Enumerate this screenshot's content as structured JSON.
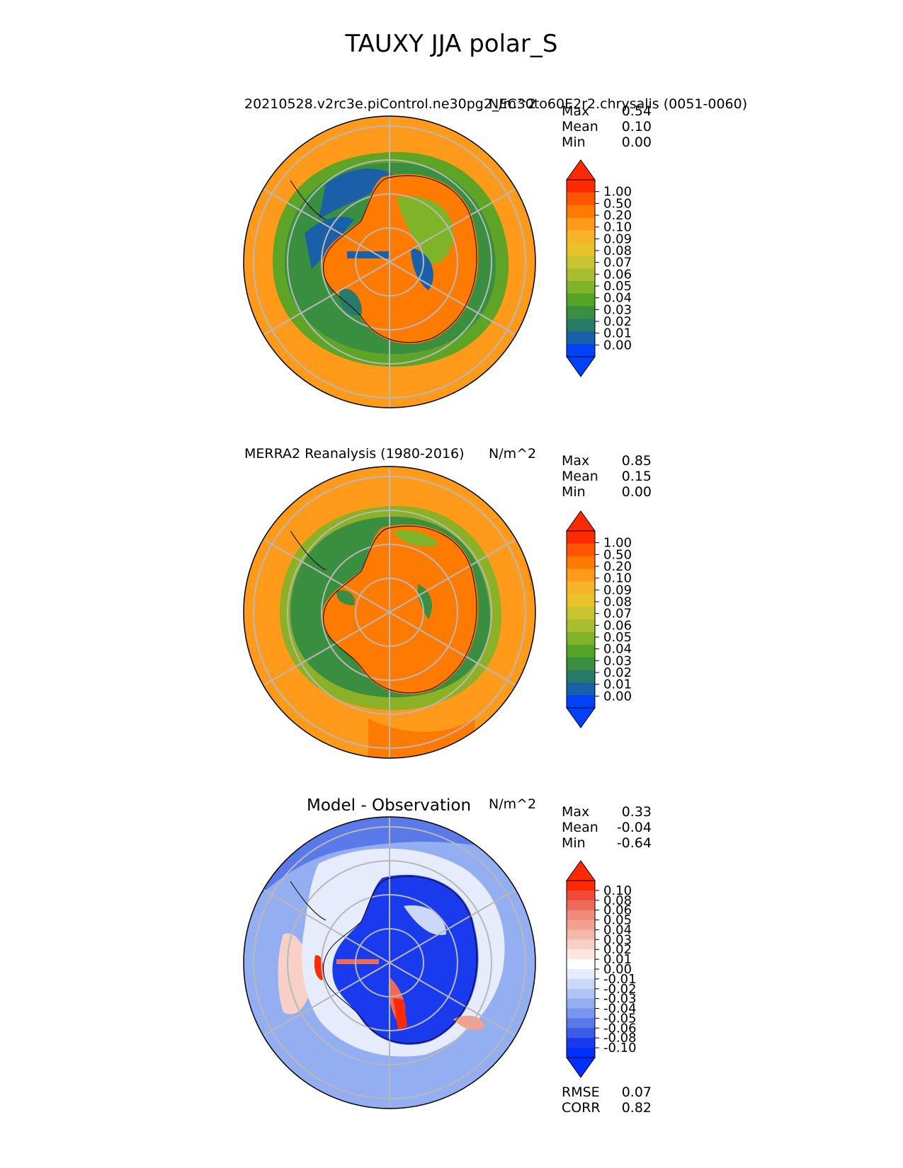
{
  "figure": {
    "title": "TAUXY JJA polar_S"
  },
  "panels": [
    {
      "id": "test",
      "title_left": "20210528.v2rc3e.piControl.ne30pg2_EC30to60E2r2.chrysalis (0051-0060)",
      "units": "N/m^2",
      "stats": [
        {
          "label": "Max",
          "value": "0.54"
        },
        {
          "label": "Mean",
          "value": "0.10"
        },
        {
          "label": "Min",
          "value": "0.00"
        }
      ],
      "colorbar": {
        "labels": [
          "1.00",
          "0.50",
          "0.20",
          "0.10",
          "0.09",
          "0.08",
          "0.07",
          "0.06",
          "0.05",
          "0.04",
          "0.03",
          "0.02",
          "0.01",
          "0.00"
        ],
        "colors": [
          "#ff2a00",
          "#ff5500",
          "#ff7a00",
          "#ff9a1a",
          "#f7b42a",
          "#e8c42a",
          "#c9c430",
          "#a8be30",
          "#80b428",
          "#55a428",
          "#3a8e40",
          "#2a7a6a",
          "#1a60a8",
          "#0040ff"
        ]
      }
    },
    {
      "id": "ref",
      "title_left": "MERRA2 Reanalysis (1980-2016)",
      "units": "N/m^2",
      "stats": [
        {
          "label": "Max",
          "value": "0.85"
        },
        {
          "label": "Mean",
          "value": "0.15"
        },
        {
          "label": "Min",
          "value": "0.00"
        }
      ],
      "colorbar": {
        "labels": [
          "1.00",
          "0.50",
          "0.20",
          "0.10",
          "0.09",
          "0.08",
          "0.07",
          "0.06",
          "0.05",
          "0.04",
          "0.03",
          "0.02",
          "0.01",
          "0.00"
        ],
        "colors": [
          "#ff2a00",
          "#ff5500",
          "#ff7a00",
          "#ff9a1a",
          "#f7b42a",
          "#e8c42a",
          "#c9c430",
          "#a8be30",
          "#80b428",
          "#55a428",
          "#3a8e40",
          "#2a7a6a",
          "#1a60a8",
          "#0040ff"
        ]
      }
    },
    {
      "id": "diff",
      "title_left": "Model - Observation",
      "units": "N/m^2",
      "stats": [
        {
          "label": "Max",
          "value": "0.33"
        },
        {
          "label": "Mean",
          "value": "-0.04"
        },
        {
          "label": "Min",
          "value": "-0.64"
        }
      ],
      "extra_stats": [
        {
          "label": "RMSE",
          "value": "0.07"
        },
        {
          "label": "CORR",
          "value": "0.82"
        }
      ],
      "colorbar": {
        "labels": [
          "0.10",
          "0.08",
          "0.06",
          "0.05",
          "0.04",
          "0.03",
          "0.02",
          "0.01",
          "0.00",
          "-0.01",
          "-0.02",
          "-0.03",
          "-0.04",
          "-0.05",
          "-0.06",
          "-0.08",
          "-0.10"
        ],
        "colors": [
          "#ff2a00",
          "#f04a3a",
          "#f06a5a",
          "#f08a7a",
          "#f2a090",
          "#f4b8aa",
          "#f8d0c6",
          "#fbe6e0",
          "#ffffff",
          "#e6ecfb",
          "#ccd8f8",
          "#b0c4f5",
          "#94aef2",
          "#7896ee",
          "#5a7aea",
          "#3a5ae8",
          "#1a3aee",
          "#0030ff"
        ]
      }
    }
  ]
}
